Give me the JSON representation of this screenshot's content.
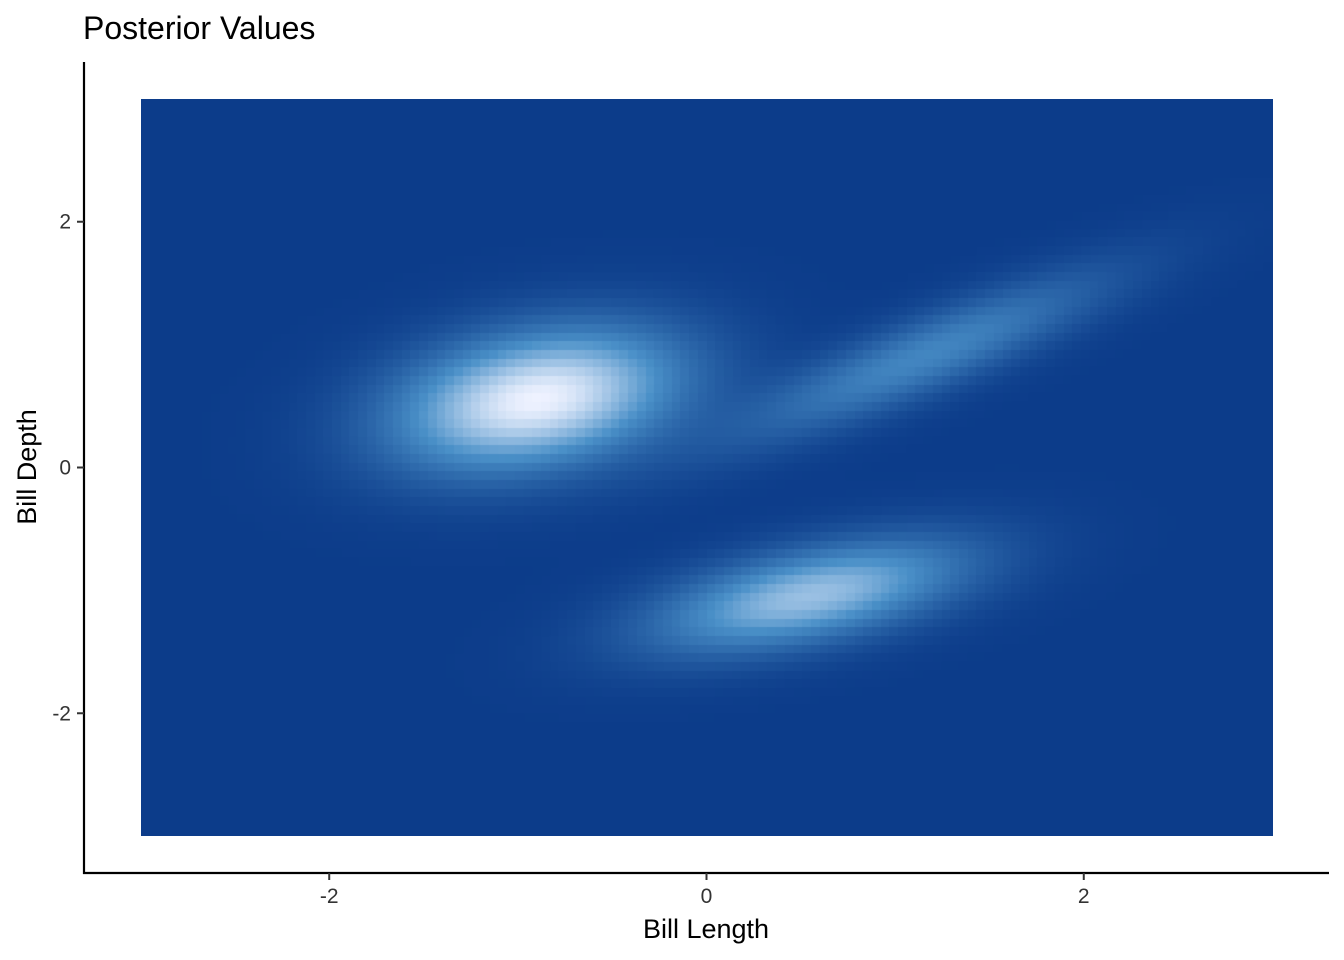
{
  "chart_data": {
    "type": "heatmap",
    "title": "Posterior Values",
    "xlabel": "Bill Length",
    "ylabel": "Bill Depth",
    "xlim": [
      -3.3,
      3.3
    ],
    "ylim": [
      -3.3,
      3.3
    ],
    "x_range": [
      -3,
      3
    ],
    "y_range": [
      -3,
      3
    ],
    "x_ticks": [
      {
        "value": -2,
        "label": "-2"
      },
      {
        "value": 0,
        "label": "0"
      },
      {
        "value": 2,
        "label": "2"
      }
    ],
    "y_ticks": [
      {
        "value": 2,
        "label": "2"
      },
      {
        "value": 0,
        "label": "0"
      },
      {
        "value": -2,
        "label": "-2"
      }
    ],
    "grid": false,
    "legend": "none",
    "colors": {
      "low": "#0c3c8a",
      "mid": "#4a90c8",
      "high": "#eef2ff"
    },
    "density_components": [
      {
        "mean": [
          -0.9,
          0.55
        ],
        "sd": [
          0.5,
          0.38
        ],
        "correlation": 0.3,
        "weight": 1.0
      },
      {
        "mean": [
          0.55,
          -1.05
        ],
        "sd": [
          0.55,
          0.3
        ],
        "correlation": 0.55,
        "weight": 0.72
      },
      {
        "mean": [
          1.15,
          0.9
        ],
        "sd": [
          0.65,
          0.45
        ],
        "correlation": 0.88,
        "weight": 0.4
      }
    ]
  }
}
